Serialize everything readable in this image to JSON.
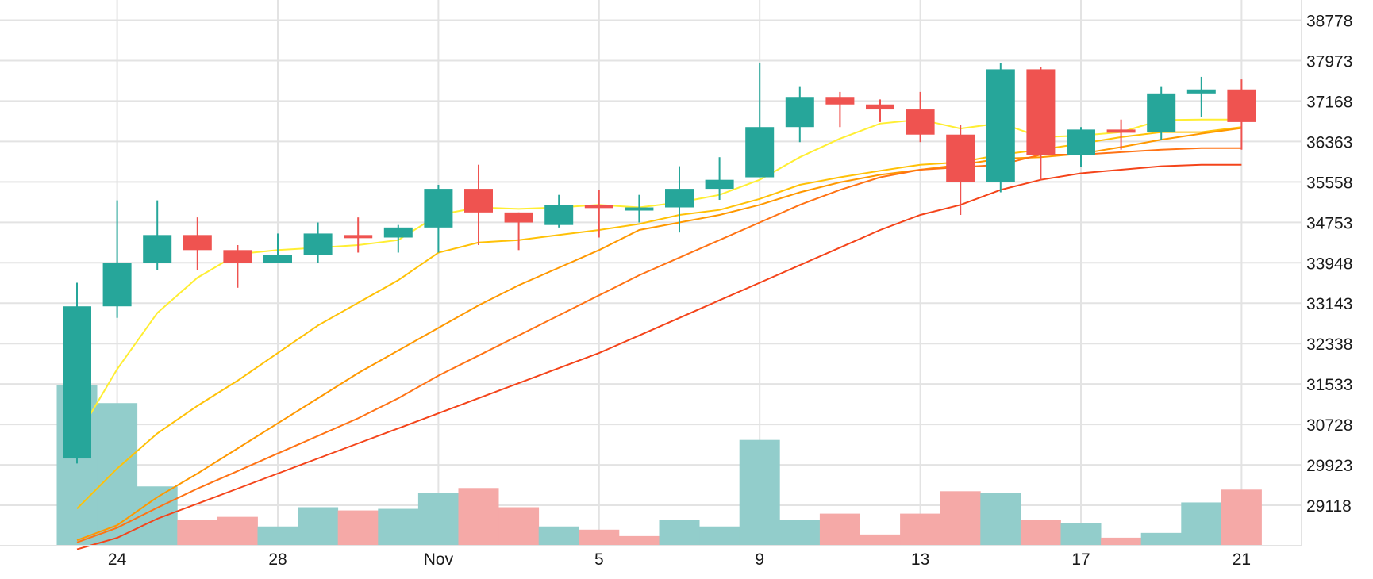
{
  "chart_data": {
    "type": "candlestick",
    "title": "",
    "xlabel": "",
    "ylabel": "",
    "ylim": [
      28313,
      39181
    ],
    "y_ticks": [
      29118,
      29923,
      30728,
      31533,
      32338,
      33143,
      33948,
      34753,
      35558,
      36363,
      37168,
      37973,
      38778
    ],
    "x_ticks": [
      {
        "day": 1,
        "label": "24"
      },
      {
        "day": 5,
        "label": "28"
      },
      {
        "day": 9,
        "label": "Nov"
      },
      {
        "day": 13,
        "label": "5"
      },
      {
        "day": 17,
        "label": "9"
      },
      {
        "day": 21,
        "label": "13"
      },
      {
        "day": 25,
        "label": "17"
      },
      {
        "day": 29,
        "label": "21"
      }
    ],
    "colors": {
      "up": "#26a69a",
      "down": "#ef5350",
      "vol_up": "#92cdcb",
      "vol_down": "#f5a9a7"
    },
    "candles": [
      {
        "day": 0,
        "open": 30050,
        "high": 33550,
        "low": 29950,
        "close": 33080
      },
      {
        "day": 1,
        "open": 33080,
        "high": 35190,
        "low": 32850,
        "close": 33950
      },
      {
        "day": 2,
        "open": 33950,
        "high": 35190,
        "low": 33800,
        "close": 34500
      },
      {
        "day": 3,
        "open": 34500,
        "high": 34850,
        "low": 33800,
        "close": 34200
      },
      {
        "day": 4,
        "open": 34200,
        "high": 34300,
        "low": 33450,
        "close": 33950
      },
      {
        "day": 5,
        "open": 33950,
        "high": 34530,
        "low": 33950,
        "close": 34100
      },
      {
        "day": 6,
        "open": 34100,
        "high": 34750,
        "low": 33950,
        "close": 34530
      },
      {
        "day": 7,
        "open": 34500,
        "high": 34850,
        "low": 34150,
        "close": 34480
      },
      {
        "day": 8,
        "open": 34450,
        "high": 34700,
        "low": 34150,
        "close": 34650
      },
      {
        "day": 9,
        "open": 34650,
        "high": 35500,
        "low": 34150,
        "close": 35420
      },
      {
        "day": 10,
        "open": 35420,
        "high": 35900,
        "low": 34300,
        "close": 34950
      },
      {
        "day": 11,
        "open": 34950,
        "high": 34950,
        "low": 34200,
        "close": 34750
      },
      {
        "day": 12,
        "open": 34700,
        "high": 35300,
        "low": 34650,
        "close": 35100
      },
      {
        "day": 13,
        "open": 35100,
        "high": 35400,
        "low": 34450,
        "close": 35050
      },
      {
        "day": 14,
        "open": 35050,
        "high": 35300,
        "low": 34750,
        "close": 35050
      },
      {
        "day": 15,
        "open": 35050,
        "high": 35870,
        "low": 34550,
        "close": 35420
      },
      {
        "day": 16,
        "open": 35420,
        "high": 36050,
        "low": 35200,
        "close": 35600
      },
      {
        "day": 17,
        "open": 35650,
        "high": 37930,
        "low": 35650,
        "close": 36650
      },
      {
        "day": 18,
        "open": 36650,
        "high": 37450,
        "low": 36350,
        "close": 37250
      },
      {
        "day": 19,
        "open": 37250,
        "high": 37350,
        "low": 36650,
        "close": 37100
      },
      {
        "day": 20,
        "open": 37100,
        "high": 37200,
        "low": 36750,
        "close": 37000
      },
      {
        "day": 21,
        "open": 37000,
        "high": 37350,
        "low": 36350,
        "close": 36500
      },
      {
        "day": 22,
        "open": 36500,
        "high": 36700,
        "low": 34900,
        "close": 35550
      },
      {
        "day": 23,
        "open": 35550,
        "high": 37930,
        "low": 35350,
        "close": 37800
      },
      {
        "day": 24,
        "open": 37800,
        "high": 37850,
        "low": 35600,
        "close": 36100
      },
      {
        "day": 25,
        "open": 36100,
        "high": 36650,
        "low": 35850,
        "close": 36600
      },
      {
        "day": 26,
        "open": 36600,
        "high": 36800,
        "low": 36200,
        "close": 36550
      },
      {
        "day": 27,
        "open": 36550,
        "high": 37450,
        "low": 36400,
        "close": 37320
      },
      {
        "day": 28,
        "open": 37320,
        "high": 37650,
        "low": 36850,
        "close": 37400
      },
      {
        "day": 29,
        "open": 37400,
        "high": 37600,
        "low": 36200,
        "close": 36750
      }
    ],
    "volumes": [
      {
        "day": 0,
        "value": 100,
        "dir": "up"
      },
      {
        "day": 1,
        "value": 89,
        "dir": "up"
      },
      {
        "day": 2,
        "value": 37,
        "dir": "up"
      },
      {
        "day": 3,
        "value": 16,
        "dir": "down"
      },
      {
        "day": 4,
        "value": 18,
        "dir": "down"
      },
      {
        "day": 5,
        "value": 12,
        "dir": "up"
      },
      {
        "day": 6,
        "value": 24,
        "dir": "up"
      },
      {
        "day": 7,
        "value": 22,
        "dir": "down"
      },
      {
        "day": 8,
        "value": 23,
        "dir": "up"
      },
      {
        "day": 9,
        "value": 33,
        "dir": "up"
      },
      {
        "day": 10,
        "value": 36,
        "dir": "down"
      },
      {
        "day": 11,
        "value": 24,
        "dir": "down"
      },
      {
        "day": 12,
        "value": 12,
        "dir": "up"
      },
      {
        "day": 13,
        "value": 10,
        "dir": "down"
      },
      {
        "day": 14,
        "value": 6,
        "dir": "down"
      },
      {
        "day": 15,
        "value": 16,
        "dir": "up"
      },
      {
        "day": 16,
        "value": 12,
        "dir": "up"
      },
      {
        "day": 17,
        "value": 66,
        "dir": "up"
      },
      {
        "day": 18,
        "value": 16,
        "dir": "up"
      },
      {
        "day": 19,
        "value": 20,
        "dir": "down"
      },
      {
        "day": 20,
        "value": 7,
        "dir": "down"
      },
      {
        "day": 21,
        "value": 20,
        "dir": "down"
      },
      {
        "day": 22,
        "value": 34,
        "dir": "down"
      },
      {
        "day": 23,
        "value": 33,
        "dir": "up"
      },
      {
        "day": 24,
        "value": 16,
        "dir": "down"
      },
      {
        "day": 25,
        "value": 14,
        "dir": "up"
      },
      {
        "day": 26,
        "value": 5,
        "dir": "down"
      },
      {
        "day": 27,
        "value": 8,
        "dir": "up"
      },
      {
        "day": 28,
        "value": 27,
        "dir": "up"
      },
      {
        "day": 29,
        "value": 35,
        "dir": "down"
      }
    ],
    "moving_averages": [
      {
        "color": "#ffee33",
        "points": [
          [
            0,
            30480
          ],
          [
            1,
            31830
          ],
          [
            2,
            32950
          ],
          [
            3,
            33650
          ],
          [
            4,
            34120
          ],
          [
            5,
            34200
          ],
          [
            6,
            34250
          ],
          [
            7,
            34300
          ],
          [
            8,
            34400
          ],
          [
            9,
            34900
          ],
          [
            10,
            35050
          ],
          [
            11,
            35020
          ],
          [
            12,
            35050
          ],
          [
            13,
            35100
          ],
          [
            14,
            35050
          ],
          [
            15,
            35150
          ],
          [
            16,
            35300
          ],
          [
            17,
            35600
          ],
          [
            18,
            36050
          ],
          [
            19,
            36420
          ],
          [
            20,
            36720
          ],
          [
            21,
            36800
          ],
          [
            22,
            36620
          ],
          [
            23,
            36730
          ],
          [
            24,
            36450
          ],
          [
            25,
            36480
          ],
          [
            26,
            36550
          ],
          [
            27,
            36790
          ],
          [
            28,
            36800
          ],
          [
            29,
            36800
          ]
        ]
      },
      {
        "color": "#ffc107",
        "points": [
          [
            0,
            29050
          ],
          [
            1,
            29850
          ],
          [
            2,
            30550
          ],
          [
            3,
            31100
          ],
          [
            4,
            31600
          ],
          [
            5,
            32150
          ],
          [
            6,
            32700
          ],
          [
            7,
            33150
          ],
          [
            8,
            33600
          ],
          [
            9,
            34150
          ],
          [
            10,
            34350
          ],
          [
            11,
            34400
          ],
          [
            12,
            34500
          ],
          [
            13,
            34600
          ],
          [
            14,
            34720
          ],
          [
            15,
            34900
          ],
          [
            16,
            35000
          ],
          [
            17,
            35220
          ],
          [
            18,
            35500
          ],
          [
            19,
            35650
          ],
          [
            20,
            35780
          ],
          [
            21,
            35900
          ],
          [
            22,
            35950
          ],
          [
            23,
            36100
          ],
          [
            24,
            36200
          ],
          [
            25,
            36320
          ],
          [
            26,
            36450
          ],
          [
            27,
            36550
          ],
          [
            28,
            36550
          ],
          [
            29,
            36650
          ]
        ]
      },
      {
        "color": "#ff9800",
        "points": [
          [
            0,
            28420
          ],
          [
            1,
            28720
          ],
          [
            2,
            29280
          ],
          [
            3,
            29750
          ],
          [
            4,
            30250
          ],
          [
            5,
            30750
          ],
          [
            6,
            31250
          ],
          [
            7,
            31750
          ],
          [
            8,
            32200
          ],
          [
            9,
            32650
          ],
          [
            10,
            33100
          ],
          [
            11,
            33500
          ],
          [
            12,
            33850
          ],
          [
            13,
            34200
          ],
          [
            14,
            34600
          ],
          [
            15,
            34750
          ],
          [
            16,
            34900
          ],
          [
            17,
            35100
          ],
          [
            18,
            35350
          ],
          [
            19,
            35550
          ],
          [
            20,
            35700
          ],
          [
            21,
            35800
          ],
          [
            22,
            35900
          ],
          [
            23,
            36020
          ],
          [
            24,
            36050
          ],
          [
            25,
            36120
          ],
          [
            26,
            36250
          ],
          [
            27,
            36400
          ],
          [
            28,
            36520
          ],
          [
            29,
            36630
          ]
        ]
      },
      {
        "color": "#ff7315",
        "points": [
          [
            0,
            28380
          ],
          [
            1,
            28670
          ],
          [
            2,
            29070
          ],
          [
            3,
            29450
          ],
          [
            4,
            29800
          ],
          [
            5,
            30150
          ],
          [
            6,
            30500
          ],
          [
            7,
            30850
          ],
          [
            8,
            31250
          ],
          [
            9,
            31700
          ],
          [
            10,
            32100
          ],
          [
            11,
            32500
          ],
          [
            12,
            32900
          ],
          [
            13,
            33300
          ],
          [
            14,
            33700
          ],
          [
            15,
            34050
          ],
          [
            16,
            34400
          ],
          [
            17,
            34750
          ],
          [
            18,
            35100
          ],
          [
            19,
            35400
          ],
          [
            20,
            35650
          ],
          [
            21,
            35800
          ],
          [
            22,
            35850
          ],
          [
            23,
            35900
          ],
          [
            24,
            36100
          ],
          [
            25,
            36100
          ],
          [
            26,
            36150
          ],
          [
            27,
            36200
          ],
          [
            28,
            36230
          ],
          [
            29,
            36230
          ]
        ]
      },
      {
        "color": "#f4441a",
        "points": [
          [
            0,
            28240
          ],
          [
            1,
            28470
          ],
          [
            2,
            28850
          ],
          [
            3,
            29150
          ],
          [
            4,
            29450
          ],
          [
            5,
            29750
          ],
          [
            6,
            30050
          ],
          [
            7,
            30350
          ],
          [
            8,
            30650
          ],
          [
            9,
            30950
          ],
          [
            10,
            31250
          ],
          [
            11,
            31550
          ],
          [
            12,
            31850
          ],
          [
            13,
            32150
          ],
          [
            14,
            32500
          ],
          [
            15,
            32850
          ],
          [
            16,
            33200
          ],
          [
            17,
            33550
          ],
          [
            18,
            33900
          ],
          [
            19,
            34250
          ],
          [
            20,
            34600
          ],
          [
            21,
            34900
          ],
          [
            22,
            35100
          ],
          [
            23,
            35400
          ],
          [
            24,
            35600
          ],
          [
            25,
            35730
          ],
          [
            26,
            35800
          ],
          [
            27,
            35870
          ],
          [
            28,
            35900
          ],
          [
            29,
            35900
          ]
        ]
      }
    ],
    "grid": true,
    "legend": "none"
  }
}
